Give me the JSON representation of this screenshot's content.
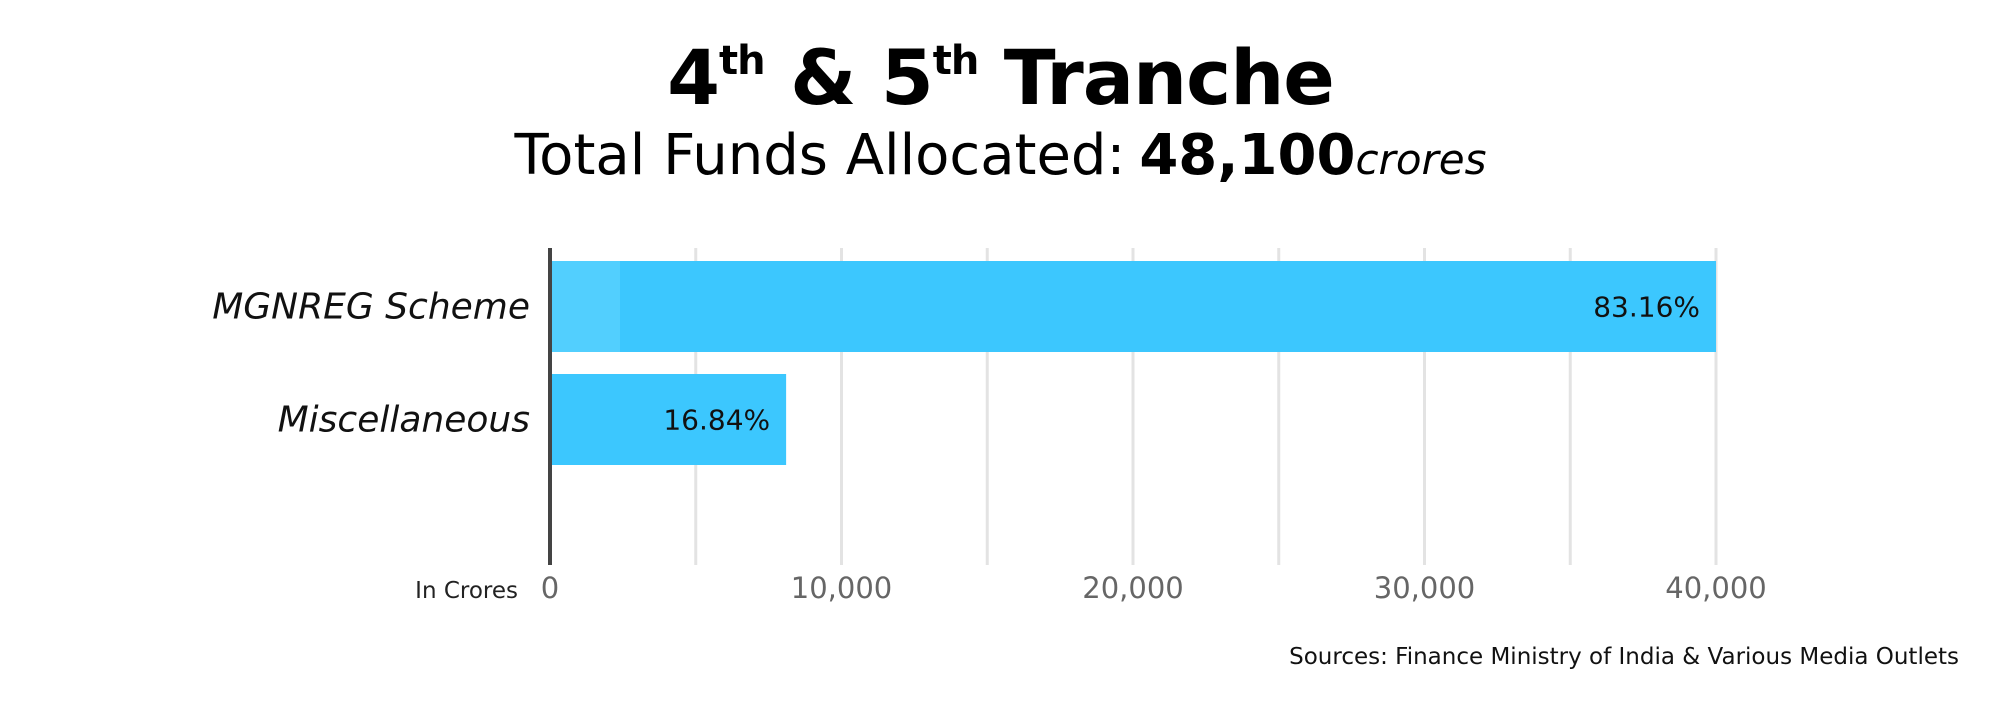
{
  "title": {
    "part1": "4",
    "sup1": "th",
    "part2": " & 5",
    "sup2": "th",
    "part3": " Tranche"
  },
  "subtitle": {
    "label": "Total Funds Allocated:",
    "amount": "48,100",
    "unit": "crores"
  },
  "source": "Sources: Finance Ministry of India & Various Media Outlets",
  "chart_data": {
    "type": "bar",
    "orientation": "horizontal",
    "categories": [
      "MGNREG Scheme",
      "Miscellaneous"
    ],
    "values": [
      40000,
      8100
    ],
    "data_labels": [
      "83.16%",
      "16.84%"
    ],
    "xlabel": "In Crores",
    "xlim": [
      0,
      40000
    ],
    "x_ticks": [
      0,
      10000,
      20000,
      30000,
      40000
    ],
    "x_tick_labels": [
      "0",
      "10,000",
      "20,000",
      "30,000",
      "40,000"
    ],
    "minor_gridlines": [
      5000,
      15000,
      25000,
      35000
    ],
    "grid": true,
    "bar_color": "#3cc7fe",
    "bar_highlight_color": "#52cffe",
    "axis_color": "#444444",
    "grid_color": "#e3e3e3",
    "tick_label_color": "#666666"
  }
}
